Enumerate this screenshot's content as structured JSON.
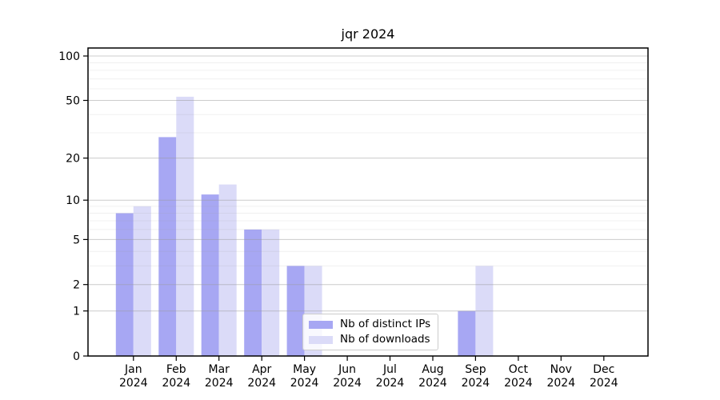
{
  "chart_data": {
    "type": "bar",
    "title": "jqr 2024",
    "categories": [
      "Jan",
      "Feb",
      "Mar",
      "Apr",
      "May",
      "Jun",
      "Jul",
      "Aug",
      "Sep",
      "Oct",
      "Nov",
      "Dec"
    ],
    "year_label": "2024",
    "series": [
      {
        "name": "Nb of distinct IPs",
        "color": "#a7a7f3",
        "values": [
          8,
          28,
          11,
          6,
          3,
          0,
          0,
          0,
          1,
          0,
          0,
          0
        ]
      },
      {
        "name": "Nb of downloads",
        "color": "#dbdbf8",
        "values": [
          9,
          53,
          13,
          6,
          3,
          0,
          0,
          0,
          3,
          0,
          0,
          0
        ]
      }
    ],
    "xlabel": "",
    "ylabel": "",
    "yscale": "log1p",
    "yticks": [
      0,
      1,
      2,
      5,
      10,
      20,
      50,
      100
    ],
    "ylim": [
      0,
      113
    ],
    "grid": true,
    "legend_position": "lower-center"
  }
}
